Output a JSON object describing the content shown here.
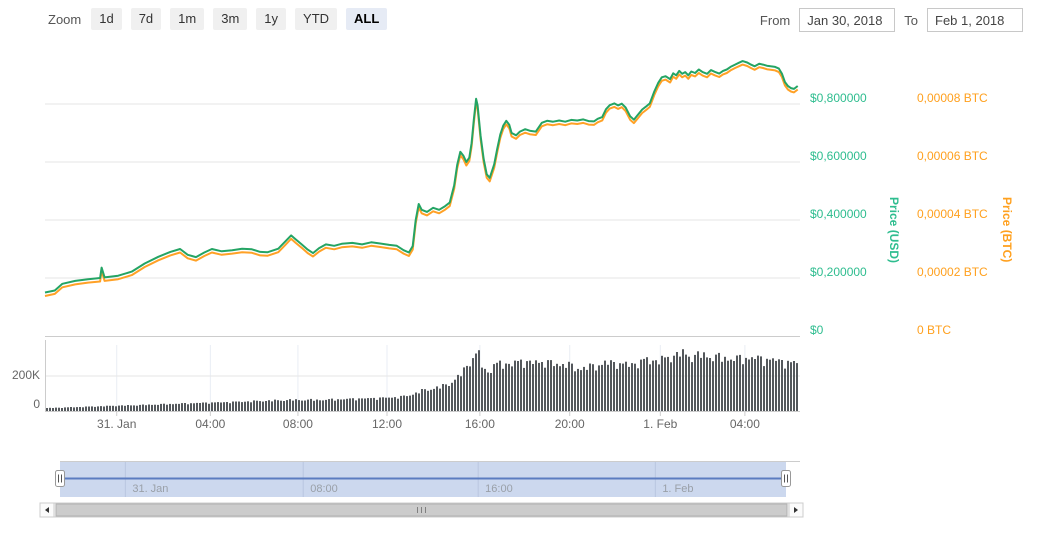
{
  "toolbar": {
    "zoom_label": "Zoom",
    "zoom_buttons": [
      {
        "label": "1d",
        "active": false
      },
      {
        "label": "7d",
        "active": false
      },
      {
        "label": "1m",
        "active": false
      },
      {
        "label": "3m",
        "active": false
      },
      {
        "label": "1y",
        "active": false
      },
      {
        "label": "YTD",
        "active": false
      },
      {
        "label": "ALL",
        "active": true
      }
    ],
    "from_label": "From",
    "from_value": "Jan 30, 2018",
    "to_label": "To",
    "to_value": "Feb 1, 2018"
  },
  "colors": {
    "usd_line": "#24a464",
    "usd_text": "#2ebd8f",
    "btc_line": "#ffa126",
    "btc_text": "#ffa01e",
    "volume_bar": "#54585c",
    "grid": "#e6e6e6",
    "volume_vgrid": "#e9edf4",
    "axis_line": "#cccccc",
    "x_label": "#666666",
    "volume_label": "#666666",
    "nav_fill": "#ccd8ee",
    "nav_grid": "#b9c6e0",
    "nav_line": "#5b7cc0",
    "nav_label": "#9aa0a8",
    "nav_outline": "#cccccc",
    "handle_fill": "#ffffff",
    "handle_border": "#999999",
    "handle_stripe": "#555555",
    "scroll_track": "#f5f5f5",
    "scroll_thumb": "#cccccc",
    "scroll_thumb_border": "#b0b0b0",
    "scroll_button": "#fbfbfb",
    "scroll_border": "#cccccc",
    "scroll_arrow": "#333333",
    "scroll_grip": "#808080"
  },
  "chart_data": {
    "type": "line",
    "title": "",
    "legend": "none",
    "series": [
      {
        "name": "Price (USD)",
        "axis": "usd"
      },
      {
        "name": "Price (BTC)",
        "axis": "btc"
      },
      {
        "name": "Volume",
        "axis": "volume"
      }
    ],
    "xaxis": {
      "labels": [
        "31. Jan",
        "04:00",
        "08:00",
        "12:00",
        "16:00",
        "20:00",
        "1. Feb",
        "04:00"
      ],
      "fractions": [
        0.095,
        0.219,
        0.335,
        0.453,
        0.576,
        0.695,
        0.815,
        0.927
      ]
    },
    "yaxis_usd": {
      "title": "Price (USD)",
      "range": [
        0,
        1.0
      ],
      "ticks": [
        {
          "label": "$0",
          "value": 0
        },
        {
          "label": "$0,200000",
          "value": 0.2
        },
        {
          "label": "$0,400000",
          "value": 0.4
        },
        {
          "label": "$0,600000",
          "value": 0.6
        },
        {
          "label": "$0,800000",
          "value": 0.8
        }
      ]
    },
    "yaxis_btc": {
      "title": "Price (BTC)",
      "btc_per_usd": 0.0001,
      "ticks": [
        {
          "label": "0 BTC",
          "value": 0
        },
        {
          "label": "0,00002 BTC",
          "value": 0.2
        },
        {
          "label": "0,00004 BTC",
          "value": 0.4
        },
        {
          "label": "0,00006 BTC",
          "value": 0.6
        },
        {
          "label": "0,00008 BTC",
          "value": 0.8
        }
      ]
    },
    "volume_axis": {
      "range_k": [
        0,
        400
      ],
      "ticks": [
        {
          "label": "0",
          "value": 0
        },
        {
          "label": "200K",
          "value": 200
        }
      ]
    },
    "price_usd": [
      [
        0.0,
        0.15
      ],
      [
        0.013,
        0.157
      ],
      [
        0.023,
        0.18
      ],
      [
        0.04,
        0.19
      ],
      [
        0.057,
        0.196
      ],
      [
        0.073,
        0.2
      ],
      [
        0.075,
        0.236
      ],
      [
        0.079,
        0.202
      ],
      [
        0.097,
        0.208
      ],
      [
        0.115,
        0.222
      ],
      [
        0.132,
        0.25
      ],
      [
        0.15,
        0.273
      ],
      [
        0.166,
        0.29
      ],
      [
        0.179,
        0.3
      ],
      [
        0.189,
        0.28
      ],
      [
        0.2,
        0.272
      ],
      [
        0.211,
        0.288
      ],
      [
        0.221,
        0.3
      ],
      [
        0.234,
        0.292
      ],
      [
        0.248,
        0.296
      ],
      [
        0.261,
        0.301
      ],
      [
        0.274,
        0.299
      ],
      [
        0.285,
        0.29
      ],
      [
        0.295,
        0.289
      ],
      [
        0.309,
        0.301
      ],
      [
        0.319,
        0.328
      ],
      [
        0.326,
        0.347
      ],
      [
        0.332,
        0.333
      ],
      [
        0.34,
        0.316
      ],
      [
        0.348,
        0.298
      ],
      [
        0.355,
        0.286
      ],
      [
        0.363,
        0.303
      ],
      [
        0.372,
        0.316
      ],
      [
        0.383,
        0.311
      ],
      [
        0.393,
        0.318
      ],
      [
        0.407,
        0.321
      ],
      [
        0.42,
        0.316
      ],
      [
        0.432,
        0.323
      ],
      [
        0.444,
        0.319
      ],
      [
        0.456,
        0.314
      ],
      [
        0.466,
        0.311
      ],
      [
        0.475,
        0.296
      ],
      [
        0.482,
        0.288
      ],
      [
        0.487,
        0.31
      ],
      [
        0.491,
        0.4
      ],
      [
        0.495,
        0.455
      ],
      [
        0.499,
        0.435
      ],
      [
        0.506,
        0.428
      ],
      [
        0.514,
        0.442
      ],
      [
        0.522,
        0.435
      ],
      [
        0.53,
        0.448
      ],
      [
        0.536,
        0.46
      ],
      [
        0.542,
        0.52
      ],
      [
        0.546,
        0.59
      ],
      [
        0.55,
        0.635
      ],
      [
        0.554,
        0.622
      ],
      [
        0.558,
        0.6
      ],
      [
        0.562,
        0.615
      ],
      [
        0.565,
        0.665
      ],
      [
        0.568,
        0.745
      ],
      [
        0.571,
        0.818
      ],
      [
        0.573,
        0.795
      ],
      [
        0.577,
        0.69
      ],
      [
        0.581,
        0.61
      ],
      [
        0.585,
        0.558
      ],
      [
        0.589,
        0.545
      ],
      [
        0.595,
        0.592
      ],
      [
        0.599,
        0.645
      ],
      [
        0.603,
        0.695
      ],
      [
        0.607,
        0.726
      ],
      [
        0.611,
        0.742
      ],
      [
        0.615,
        0.728
      ],
      [
        0.618,
        0.7
      ],
      [
        0.624,
        0.692
      ],
      [
        0.629,
        0.705
      ],
      [
        0.636,
        0.713
      ],
      [
        0.642,
        0.708
      ],
      [
        0.65,
        0.705
      ],
      [
        0.658,
        0.735
      ],
      [
        0.665,
        0.742
      ],
      [
        0.673,
        0.739
      ],
      [
        0.681,
        0.743
      ],
      [
        0.689,
        0.739
      ],
      [
        0.697,
        0.745
      ],
      [
        0.705,
        0.743
      ],
      [
        0.713,
        0.747
      ],
      [
        0.72,
        0.741
      ],
      [
        0.727,
        0.74
      ],
      [
        0.732,
        0.749
      ],
      [
        0.738,
        0.755
      ],
      [
        0.743,
        0.782
      ],
      [
        0.748,
        0.796
      ],
      [
        0.754,
        0.802
      ],
      [
        0.759,
        0.795
      ],
      [
        0.764,
        0.801
      ],
      [
        0.769,
        0.788
      ],
      [
        0.775,
        0.758
      ],
      [
        0.78,
        0.746
      ],
      [
        0.785,
        0.762
      ],
      [
        0.791,
        0.781
      ],
      [
        0.796,
        0.791
      ],
      [
        0.801,
        0.802
      ],
      [
        0.807,
        0.843
      ],
      [
        0.812,
        0.872
      ],
      [
        0.817,
        0.892
      ],
      [
        0.822,
        0.896
      ],
      [
        0.828,
        0.886
      ],
      [
        0.832,
        0.906
      ],
      [
        0.836,
        0.899
      ],
      [
        0.84,
        0.914
      ],
      [
        0.844,
        0.904
      ],
      [
        0.848,
        0.91
      ],
      [
        0.852,
        0.899
      ],
      [
        0.856,
        0.912
      ],
      [
        0.861,
        0.907
      ],
      [
        0.866,
        0.919
      ],
      [
        0.871,
        0.91
      ],
      [
        0.877,
        0.904
      ],
      [
        0.882,
        0.917
      ],
      [
        0.887,
        0.911
      ],
      [
        0.893,
        0.905
      ],
      [
        0.898,
        0.914
      ],
      [
        0.903,
        0.919
      ],
      [
        0.908,
        0.928
      ],
      [
        0.914,
        0.936
      ],
      [
        0.919,
        0.942
      ],
      [
        0.924,
        0.948
      ],
      [
        0.93,
        0.943
      ],
      [
        0.935,
        0.936
      ],
      [
        0.94,
        0.93
      ],
      [
        0.946,
        0.939
      ],
      [
        0.951,
        0.936
      ],
      [
        0.956,
        0.932
      ],
      [
        0.961,
        0.93
      ],
      [
        0.967,
        0.928
      ],
      [
        0.972,
        0.922
      ],
      [
        0.976,
        0.905
      ],
      [
        0.98,
        0.876
      ],
      [
        0.984,
        0.862
      ],
      [
        0.988,
        0.855
      ],
      [
        0.992,
        0.852
      ],
      [
        0.997,
        0.862
      ]
    ],
    "btc_usd_offset": 0.012,
    "volume_profile_k": [
      [
        0.004,
        17
      ],
      [
        0.046,
        23
      ],
      [
        0.086,
        29
      ],
      [
        0.126,
        34
      ],
      [
        0.166,
        40
      ],
      [
        0.205,
        46
      ],
      [
        0.245,
        51
      ],
      [
        0.285,
        57
      ],
      [
        0.324,
        63
      ],
      [
        0.364,
        63
      ],
      [
        0.404,
        69
      ],
      [
        0.444,
        74
      ],
      [
        0.47,
        80
      ],
      [
        0.483,
        91
      ],
      [
        0.497,
        114
      ],
      [
        0.51,
        126
      ],
      [
        0.523,
        137
      ],
      [
        0.536,
        160
      ],
      [
        0.547,
        194
      ],
      [
        0.556,
        251
      ],
      [
        0.563,
        286
      ],
      [
        0.568,
        314
      ],
      [
        0.573,
        326
      ],
      [
        0.58,
        240
      ],
      [
        0.587,
        217
      ],
      [
        0.593,
        257
      ],
      [
        0.603,
        274
      ],
      [
        0.616,
        263
      ],
      [
        0.629,
        286
      ],
      [
        0.642,
        274
      ],
      [
        0.662,
        280
      ],
      [
        0.675,
        263
      ],
      [
        0.689,
        269
      ],
      [
        0.702,
        240
      ],
      [
        0.715,
        246
      ],
      [
        0.728,
        257
      ],
      [
        0.742,
        274
      ],
      [
        0.755,
        274
      ],
      [
        0.768,
        263
      ],
      [
        0.781,
        269
      ],
      [
        0.795,
        291
      ],
      [
        0.808,
        286
      ],
      [
        0.821,
        297
      ],
      [
        0.834,
        320
      ],
      [
        0.841,
        331
      ],
      [
        0.854,
        309
      ],
      [
        0.867,
        320
      ],
      [
        0.881,
        309
      ],
      [
        0.894,
        303
      ],
      [
        0.907,
        297
      ],
      [
        0.92,
        297
      ],
      [
        0.934,
        303
      ],
      [
        0.947,
        297
      ],
      [
        0.96,
        291
      ],
      [
        0.974,
        286
      ],
      [
        0.987,
        269
      ],
      [
        0.997,
        286
      ]
    ],
    "navigator": {
      "labels": [
        "31. Jan",
        "08:00",
        "16:00",
        "1. Feb"
      ],
      "fractions": [
        0.09,
        0.335,
        0.576,
        0.82
      ]
    }
  }
}
